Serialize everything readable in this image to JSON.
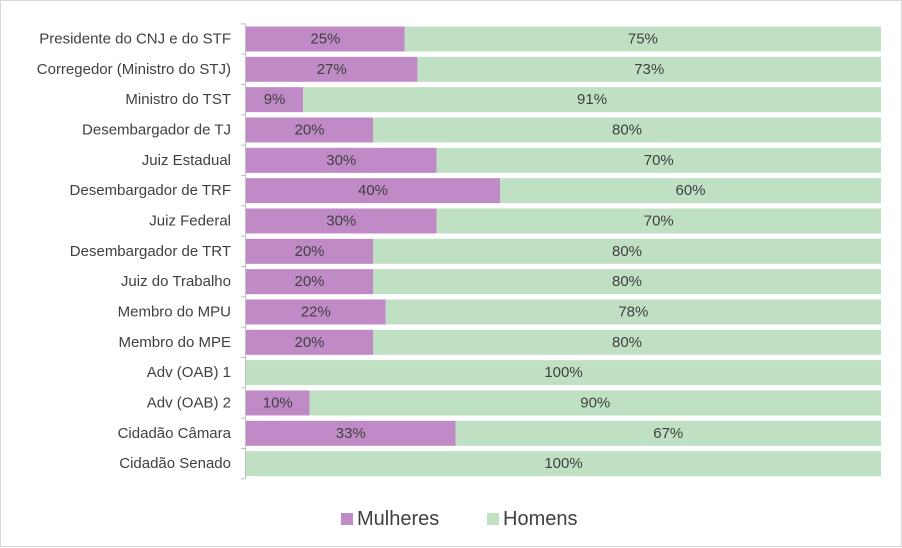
{
  "chart_data": {
    "type": "bar",
    "orientation": "horizontal",
    "stacked": "percent",
    "categories": [
      "Presidente do CNJ e do STF",
      "Corregedor (Ministro do STJ)",
      "Ministro do TST",
      "Desembargador de TJ",
      "Juiz Estadual",
      "Desembargador de TRF",
      "Juiz Federal",
      "Desembargador de TRT",
      "Juiz do Trabalho",
      "Membro do MPU",
      "Membro do MPE",
      "Adv (OAB) 1",
      "Adv (OAB) 2",
      "Cidadão Câmara",
      "Cidadão Senado"
    ],
    "series": [
      {
        "name": "Mulheres",
        "color": "#c08ac6",
        "values": [
          25,
          27,
          9,
          20,
          30,
          40,
          30,
          20,
          20,
          22,
          20,
          0,
          10,
          33,
          0
        ],
        "labels": [
          "25%",
          "27%",
          "9%",
          "20%",
          "30%",
          "40%",
          "30%",
          "20%",
          "20%",
          "22%",
          "20%",
          "",
          "10%",
          "33%",
          ""
        ]
      },
      {
        "name": "Homens",
        "color": "#bfe0c3",
        "values": [
          75,
          73,
          91,
          80,
          70,
          60,
          70,
          80,
          80,
          78,
          80,
          100,
          90,
          67,
          100
        ],
        "labels": [
          "75%",
          "73%",
          "91%",
          "80%",
          "70%",
          "60%",
          "70%",
          "80%",
          "80%",
          "78%",
          "80%",
          "100%",
          "90%",
          "67%",
          "100%"
        ]
      }
    ],
    "xlim": [
      0,
      100
    ],
    "grid": false,
    "legend_position": "bottom"
  }
}
